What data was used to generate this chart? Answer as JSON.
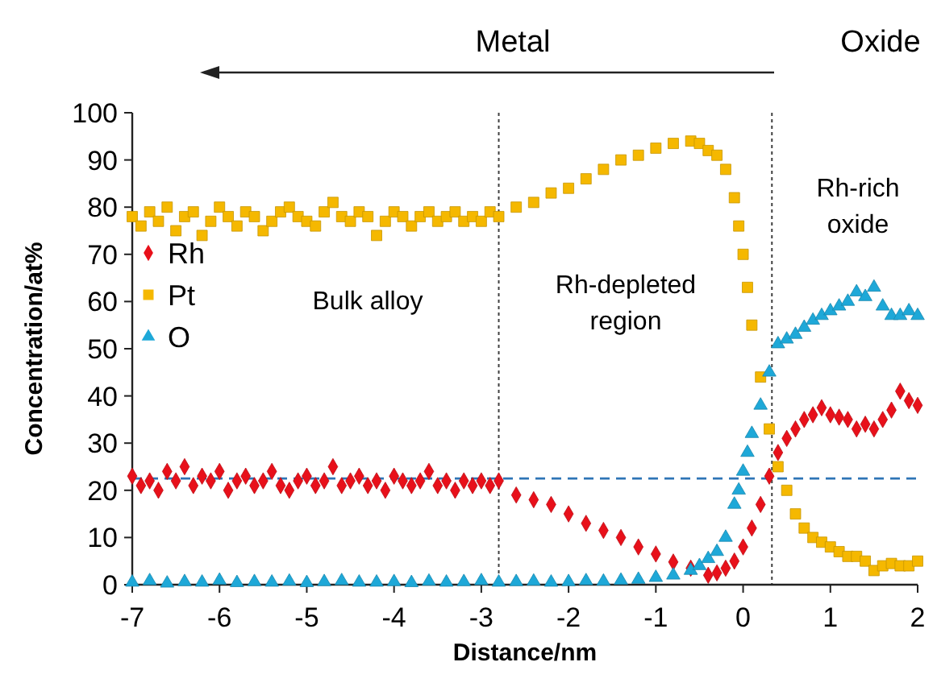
{
  "chart_data": {
    "type": "scatter",
    "xlabel": "Distance/nm",
    "ylabel": "Concentration/at%",
    "xlim": [
      -7,
      2
    ],
    "xticks": [
      -7,
      -6,
      -5,
      -4,
      -3,
      -2,
      -1,
      0,
      1,
      2
    ],
    "ylim": [
      0,
      100
    ],
    "yticks": [
      0,
      10,
      20,
      30,
      40,
      50,
      60,
      70,
      80,
      90,
      100
    ],
    "grid": false,
    "legend": "left",
    "annotations": [
      "Metal",
      "Oxide",
      "Bulk alloy",
      "Rh-depleted region",
      "Rh-rich oxide"
    ],
    "ref_lines": [
      {
        "axis": "y",
        "value": 22.5,
        "color": "#2e75b6",
        "line_style": "dashed"
      },
      {
        "axis": "x",
        "value": -2.8,
        "color": "#404040",
        "line_style": "dotted"
      },
      {
        "axis": "x",
        "value": 0.33,
        "color": "#404040",
        "line_style": "dotted"
      }
    ],
    "series": [
      {
        "name": "Rh",
        "color": "#e8101a",
        "marker": "diamond",
        "x": [
          -7,
          -6.9,
          -6.8,
          -6.7,
          -6.6,
          -6.5,
          -6.4,
          -6.3,
          -6.2,
          -6.1,
          -6,
          -5.9,
          -5.8,
          -5.7,
          -5.6,
          -5.5,
          -5.4,
          -5.3,
          -5.2,
          -5.1,
          -5,
          -4.9,
          -4.8,
          -4.7,
          -4.6,
          -4.5,
          -4.4,
          -4.3,
          -4.2,
          -4.1,
          -4,
          -3.9,
          -3.8,
          -3.7,
          -3.6,
          -3.5,
          -3.4,
          -3.3,
          -3.2,
          -3.1,
          -3,
          -2.9,
          -2.8,
          -2.6,
          -2.4,
          -2.2,
          -2,
          -1.8,
          -1.6,
          -1.4,
          -1.2,
          -1,
          -0.8,
          -0.6,
          -0.4,
          -0.3,
          -0.2,
          -0.1,
          0,
          0.1,
          0.2,
          0.3,
          0.4,
          0.5,
          0.6,
          0.7,
          0.8,
          0.9,
          1,
          1.1,
          1.2,
          1.3,
          1.4,
          1.5,
          1.6,
          1.7,
          1.8,
          1.9,
          2
        ],
        "values": [
          23,
          21,
          22,
          20,
          24,
          22,
          25,
          21,
          23,
          22,
          24,
          20,
          22,
          23,
          21,
          22,
          24,
          21,
          20,
          22,
          23,
          21,
          22,
          25,
          21,
          22,
          23,
          21,
          22,
          20,
          23,
          22,
          21,
          22,
          24,
          21,
          22,
          20,
          22,
          21,
          22,
          21,
          22,
          19,
          18,
          17,
          15,
          13,
          11.5,
          10,
          8,
          6.5,
          4.8,
          3.5,
          2,
          2.5,
          3.5,
          5,
          8,
          12,
          17,
          23,
          28,
          31,
          33,
          35,
          36,
          37.5,
          36,
          35.5,
          35,
          33,
          34,
          33,
          35,
          37,
          41,
          39,
          38
        ]
      },
      {
        "name": "Pt",
        "color": "#f5b800",
        "marker": "square",
        "x": [
          -7,
          -6.9,
          -6.8,
          -6.7,
          -6.6,
          -6.5,
          -6.4,
          -6.3,
          -6.2,
          -6.1,
          -6,
          -5.9,
          -5.8,
          -5.7,
          -5.6,
          -5.5,
          -5.4,
          -5.3,
          -5.2,
          -5.1,
          -5,
          -4.9,
          -4.8,
          -4.7,
          -4.6,
          -4.5,
          -4.4,
          -4.3,
          -4.2,
          -4.1,
          -4,
          -3.9,
          -3.8,
          -3.7,
          -3.6,
          -3.5,
          -3.4,
          -3.3,
          -3.2,
          -3.1,
          -3,
          -2.9,
          -2.8,
          -2.6,
          -2.4,
          -2.2,
          -2,
          -1.8,
          -1.6,
          -1.4,
          -1.2,
          -1,
          -0.8,
          -0.6,
          -0.5,
          -0.4,
          -0.3,
          -0.2,
          -0.1,
          -0.05,
          0,
          0.05,
          0.1,
          0.2,
          0.3,
          0.4,
          0.5,
          0.6,
          0.7,
          0.8,
          0.9,
          1,
          1.1,
          1.2,
          1.3,
          1.4,
          1.5,
          1.6,
          1.7,
          1.8,
          1.9,
          2
        ],
        "values": [
          78,
          76,
          79,
          77,
          80,
          75,
          78,
          79,
          74,
          77,
          80,
          78,
          76,
          79,
          78,
          75,
          77,
          79,
          80,
          78,
          77,
          76,
          79,
          81,
          78,
          77,
          79,
          78,
          74,
          77,
          79,
          78,
          76,
          78,
          79,
          77,
          78,
          79,
          77,
          78,
          77,
          79,
          78,
          80,
          81,
          83,
          84,
          86,
          88,
          90,
          91,
          92.5,
          93.5,
          94,
          93.5,
          92,
          91,
          88,
          82,
          76,
          70,
          63,
          55,
          44,
          33,
          25,
          20,
          15,
          12,
          10,
          9,
          8,
          7,
          6,
          6,
          5,
          3,
          4,
          4.5,
          4,
          4,
          5
        ]
      },
      {
        "name": "O",
        "color": "#1ea8d8",
        "marker": "triangle",
        "x": [
          -7,
          -6.8,
          -6.6,
          -6.4,
          -6.2,
          -6,
          -5.8,
          -5.6,
          -5.4,
          -5.2,
          -5,
          -4.8,
          -4.6,
          -4.4,
          -4.2,
          -4,
          -3.8,
          -3.6,
          -3.4,
          -3.2,
          -3,
          -2.8,
          -2.6,
          -2.4,
          -2.2,
          -2,
          -1.8,
          -1.6,
          -1.4,
          -1.2,
          -1,
          -0.8,
          -0.6,
          -0.5,
          -0.4,
          -0.3,
          -0.2,
          -0.1,
          -0.05,
          0,
          0.05,
          0.1,
          0.2,
          0.3,
          0.4,
          0.5,
          0.6,
          0.7,
          0.8,
          0.9,
          1,
          1.1,
          1.2,
          1.3,
          1.4,
          1.5,
          1.6,
          1.7,
          1.8,
          1.9,
          2
        ],
        "values": [
          0.5,
          0.8,
          0.3,
          0.6,
          0.5,
          0.9,
          0.4,
          0.6,
          0.5,
          0.7,
          0.4,
          0.6,
          0.8,
          0.5,
          0.5,
          0.6,
          0.4,
          0.7,
          0.5,
          0.6,
          0.8,
          0.5,
          0.6,
          0.7,
          0.5,
          0.6,
          0.8,
          0.7,
          0.9,
          1.1,
          1.5,
          2,
          3,
          4,
          5.5,
          7,
          10,
          17,
          20,
          24,
          28,
          32,
          38,
          45,
          51,
          52,
          53,
          54.5,
          56,
          57,
          58,
          59,
          60,
          62,
          61,
          63,
          59,
          57,
          57,
          58,
          57
        ]
      }
    ]
  }
}
